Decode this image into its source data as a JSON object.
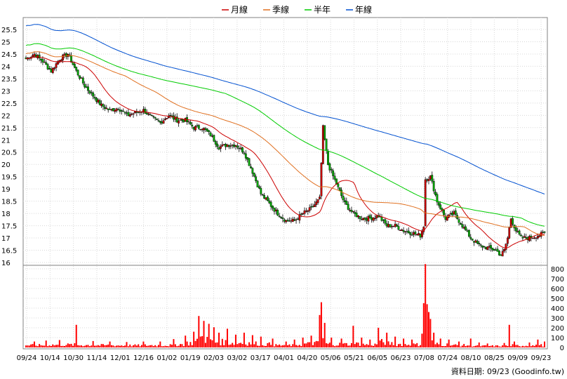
{
  "chart_data": {
    "type": "candlestick",
    "legend": [
      {
        "label": "月線",
        "color": "#cc0000"
      },
      {
        "label": "季線",
        "color": "#e07020"
      },
      {
        "label": "半年",
        "color": "#00cc00"
      },
      {
        "label": "年線",
        "color": "#0050d0"
      }
    ],
    "legend_position": "top-center",
    "price_axis": {
      "min": 16,
      "max": 25.5,
      "ticks": [
        "16",
        "16.5",
        "17",
        "17.5",
        "18",
        "18.5",
        "19",
        "19.5",
        "20",
        "20.5",
        "21",
        "21.5",
        "22",
        "22.5",
        "23",
        "23.5",
        "24",
        "24.5",
        "25",
        "25.5"
      ]
    },
    "volume_axis": {
      "min": 0,
      "max": 800,
      "ticks": [
        "0",
        "100",
        "200",
        "300",
        "400",
        "500",
        "600",
        "700",
        "800"
      ]
    },
    "x_ticks": [
      "09/24",
      "10/14",
      "10/30",
      "11/14",
      "12/01",
      "12/16",
      "01/02",
      "01/19",
      "02/03",
      "03/02",
      "03/17",
      "04/01",
      "04/20",
      "05/06",
      "05/21",
      "06/05",
      "06/23",
      "07/08",
      "07/24",
      "08/10",
      "08/25",
      "09/09",
      "09/23"
    ],
    "grid": true,
    "close_anchors": [
      [
        0,
        24.3
      ],
      [
        5,
        24.5
      ],
      [
        10,
        24.2
      ],
      [
        15,
        23.8
      ],
      [
        20,
        24.3
      ],
      [
        25,
        24.5
      ],
      [
        30,
        23.8
      ],
      [
        35,
        23.2
      ],
      [
        40,
        22.8
      ],
      [
        45,
        22.4
      ],
      [
        50,
        22.2
      ],
      [
        55,
        22.3
      ],
      [
        60,
        22.0
      ],
      [
        65,
        22.1
      ],
      [
        70,
        22.2
      ],
      [
        75,
        21.9
      ],
      [
        80,
        21.7
      ],
      [
        85,
        22.0
      ],
      [
        90,
        21.8
      ],
      [
        95,
        21.8
      ],
      [
        100,
        21.5
      ],
      [
        105,
        21.5
      ],
      [
        110,
        21.2
      ],
      [
        115,
        20.7
      ],
      [
        120,
        20.8
      ],
      [
        125,
        20.8
      ],
      [
        130,
        20.5
      ],
      [
        135,
        19.7
      ],
      [
        140,
        18.8
      ],
      [
        145,
        18.4
      ],
      [
        150,
        18.0
      ],
      [
        155,
        17.7
      ],
      [
        160,
        17.7
      ],
      [
        165,
        18.0
      ],
      [
        170,
        18.2
      ],
      [
        175,
        18.6
      ],
      [
        177,
        21.5
      ],
      [
        180,
        20.0
      ],
      [
        185,
        19.2
      ],
      [
        190,
        18.4
      ],
      [
        195,
        18.0
      ],
      [
        200,
        17.8
      ],
      [
        205,
        17.8
      ],
      [
        210,
        17.9
      ],
      [
        215,
        17.5
      ],
      [
        220,
        17.5
      ],
      [
        225,
        17.3
      ],
      [
        230,
        17.2
      ],
      [
        235,
        17.1
      ],
      [
        237,
        17.5
      ],
      [
        238,
        19.4
      ],
      [
        241,
        19.5
      ],
      [
        245,
        18.5
      ],
      [
        250,
        17.8
      ],
      [
        255,
        18.0
      ],
      [
        260,
        17.5
      ],
      [
        265,
        17.0
      ],
      [
        270,
        16.7
      ],
      [
        275,
        16.6
      ],
      [
        280,
        16.5
      ],
      [
        283,
        16.3
      ],
      [
        285,
        16.5
      ],
      [
        287,
        17.0
      ],
      [
        289,
        17.8
      ],
      [
        292,
        17.3
      ],
      [
        295,
        17.0
      ],
      [
        300,
        17.0
      ],
      [
        305,
        17.1
      ],
      [
        309,
        17.2
      ]
    ],
    "volume_spikes": [
      [
        5,
        60
      ],
      [
        12,
        70
      ],
      [
        20,
        75
      ],
      [
        30,
        230
      ],
      [
        40,
        65
      ],
      [
        50,
        60
      ],
      [
        60,
        55
      ],
      [
        70,
        60
      ],
      [
        80,
        60
      ],
      [
        88,
        85
      ],
      [
        95,
        120
      ],
      [
        100,
        160
      ],
      [
        103,
        320
      ],
      [
        106,
        270
      ],
      [
        109,
        240
      ],
      [
        112,
        205
      ],
      [
        115,
        150
      ],
      [
        120,
        190
      ],
      [
        125,
        130
      ],
      [
        130,
        150
      ],
      [
        135,
        125
      ],
      [
        140,
        110
      ],
      [
        147,
        90
      ],
      [
        155,
        60
      ],
      [
        160,
        80
      ],
      [
        165,
        100
      ],
      [
        170,
        120
      ],
      [
        175,
        330
      ],
      [
        176,
        460
      ],
      [
        178,
        250
      ],
      [
        182,
        100
      ],
      [
        188,
        90
      ],
      [
        195,
        220
      ],
      [
        200,
        100
      ],
      [
        205,
        80
      ],
      [
        210,
        200
      ],
      [
        215,
        150
      ],
      [
        220,
        110
      ],
      [
        225,
        90
      ],
      [
        230,
        80
      ],
      [
        236,
        140
      ],
      [
        237,
        450
      ],
      [
        238,
        850
      ],
      [
        239,
        440
      ],
      [
        240,
        360
      ],
      [
        241,
        290
      ],
      [
        243,
        150
      ],
      [
        247,
        90
      ],
      [
        252,
        80
      ],
      [
        258,
        60
      ],
      [
        265,
        90
      ],
      [
        270,
        50
      ],
      [
        275,
        40
      ],
      [
        285,
        45
      ],
      [
        288,
        230
      ],
      [
        291,
        60
      ],
      [
        300,
        50
      ],
      [
        305,
        80
      ],
      [
        309,
        60
      ]
    ]
  },
  "footer": {
    "text": "資料日期: 09/23 (Goodinfo.tw)"
  }
}
